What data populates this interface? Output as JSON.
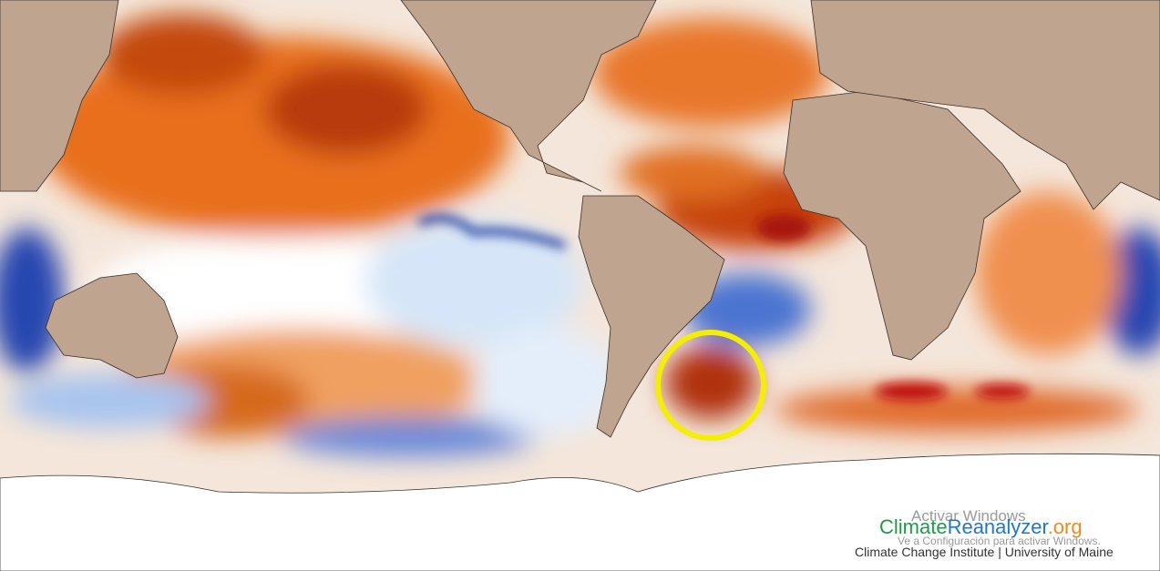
{
  "logo": {
    "parts": [
      "Climate",
      "Reanalyzer",
      ".org"
    ],
    "subtitle": "Climate Change Institute | University of Maine"
  },
  "watermark": {
    "title": "Activar Windows",
    "subtitle": "Ve a Configuración para activar Windows."
  }
}
